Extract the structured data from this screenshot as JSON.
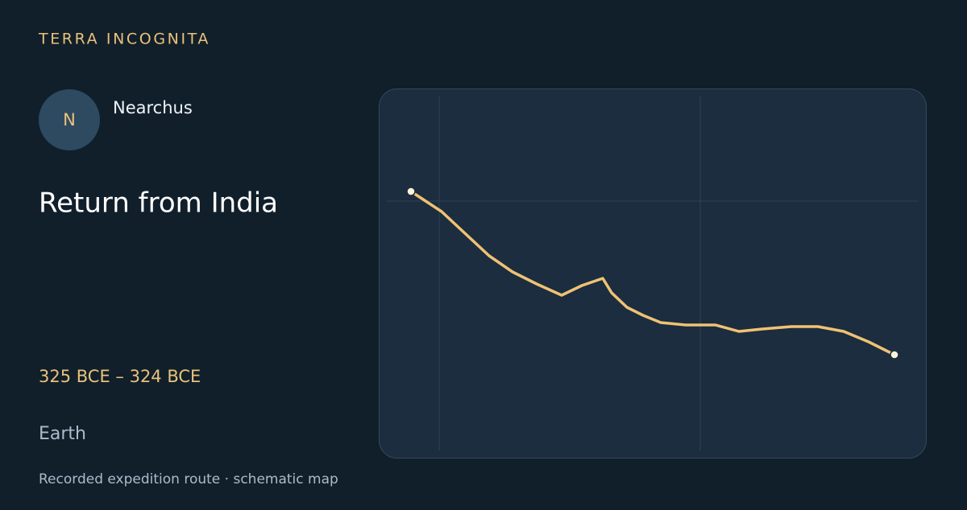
{
  "header": {
    "brand": "TERRA INCOGNITA"
  },
  "explorer": {
    "initial": "N",
    "name": "Nearchus"
  },
  "expedition": {
    "title": "Return from India",
    "dates": "325 BCE – 324 BCE",
    "place": "Earth"
  },
  "footer": {
    "caption": "Recorded expedition route · schematic map"
  }
}
